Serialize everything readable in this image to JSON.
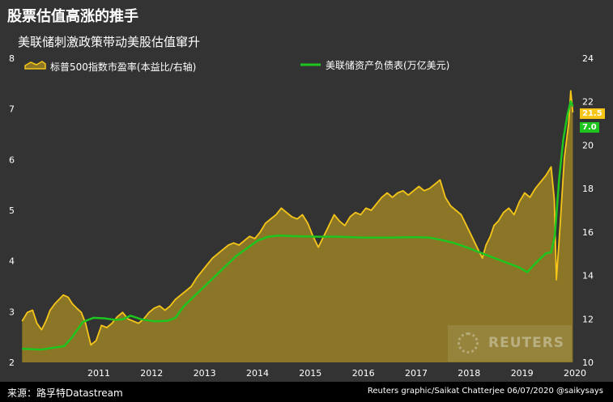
{
  "header": {
    "title": "股票估值高涨的推手",
    "subtitle": "美联储刺激政策带动美股估值窜升"
  },
  "footer": {
    "source": "来源：路孚特Datastream",
    "credit": "Reuters graphic/Saikat Chatterjee 06/07/2020 @saikysays"
  },
  "watermark": {
    "text": "REUTERS"
  },
  "colors": {
    "background": "#333333",
    "pe_line": "#f5c518",
    "pe_fill": "#8b7628",
    "fed_line": "#1ec51e"
  },
  "chart_data": {
    "type": "area",
    "x_ticks": [
      "2011",
      "2012",
      "2013",
      "2014",
      "2015",
      "2016",
      "2017",
      "2018",
      "2019",
      "2020"
    ],
    "y_left": {
      "ylim": [
        2,
        8
      ],
      "ticks": [
        "2",
        "3",
        "4",
        "5",
        "6",
        "7",
        "8"
      ]
    },
    "y_right": {
      "ylim": [
        10,
        24
      ],
      "ticks": [
        "10",
        "12",
        "14",
        "16",
        "18",
        "20",
        "22",
        "24"
      ]
    },
    "legend_position": "top",
    "grid": false,
    "series": [
      {
        "name": "标普500指数市盈率(本益比/右轴)",
        "axis": "right",
        "style": "area",
        "end_label": "21.5",
        "points": [
          [
            2010.05,
            11.9
          ],
          [
            2010.15,
            12.3
          ],
          [
            2010.25,
            12.4
          ],
          [
            2010.33,
            11.8
          ],
          [
            2010.42,
            11.5
          ],
          [
            2010.5,
            11.9
          ],
          [
            2010.58,
            12.4
          ],
          [
            2010.67,
            12.7
          ],
          [
            2010.75,
            12.9
          ],
          [
            2010.83,
            13.1
          ],
          [
            2010.92,
            13.0
          ],
          [
            2011.0,
            12.7
          ],
          [
            2011.08,
            12.5
          ],
          [
            2011.17,
            12.3
          ],
          [
            2011.25,
            11.8
          ],
          [
            2011.35,
            10.8
          ],
          [
            2011.45,
            11.0
          ],
          [
            2011.55,
            11.7
          ],
          [
            2011.65,
            11.6
          ],
          [
            2011.75,
            11.8
          ],
          [
            2011.85,
            12.1
          ],
          [
            2011.95,
            12.3
          ],
          [
            2012.05,
            12.0
          ],
          [
            2012.15,
            11.9
          ],
          [
            2012.25,
            11.8
          ],
          [
            2012.35,
            12.0
          ],
          [
            2012.45,
            12.3
          ],
          [
            2012.55,
            12.5
          ],
          [
            2012.65,
            12.6
          ],
          [
            2012.75,
            12.4
          ],
          [
            2012.85,
            12.6
          ],
          [
            2012.95,
            12.9
          ],
          [
            2013.05,
            13.1
          ],
          [
            2013.15,
            13.3
          ],
          [
            2013.25,
            13.5
          ],
          [
            2013.35,
            13.9
          ],
          [
            2013.45,
            14.2
          ],
          [
            2013.55,
            14.5
          ],
          [
            2013.65,
            14.8
          ],
          [
            2013.75,
            15.0
          ],
          [
            2013.85,
            15.2
          ],
          [
            2013.95,
            15.4
          ],
          [
            2014.05,
            15.5
          ],
          [
            2014.15,
            15.4
          ],
          [
            2014.25,
            15.6
          ],
          [
            2014.35,
            15.8
          ],
          [
            2014.45,
            15.7
          ],
          [
            2014.55,
            16.0
          ],
          [
            2014.65,
            16.4
          ],
          [
            2014.75,
            16.6
          ],
          [
            2014.85,
            16.8
          ],
          [
            2014.95,
            17.1
          ],
          [
            2015.05,
            16.9
          ],
          [
            2015.15,
            16.7
          ],
          [
            2015.25,
            16.6
          ],
          [
            2015.35,
            16.8
          ],
          [
            2015.45,
            16.4
          ],
          [
            2015.55,
            15.8
          ],
          [
            2015.65,
            15.3
          ],
          [
            2015.75,
            15.8
          ],
          [
            2015.85,
            16.3
          ],
          [
            2015.95,
            16.8
          ],
          [
            2016.05,
            16.5
          ],
          [
            2016.15,
            16.3
          ],
          [
            2016.25,
            16.7
          ],
          [
            2016.35,
            16.9
          ],
          [
            2016.45,
            16.8
          ],
          [
            2016.55,
            17.1
          ],
          [
            2016.65,
            17.0
          ],
          [
            2016.75,
            17.3
          ],
          [
            2016.85,
            17.6
          ],
          [
            2016.95,
            17.8
          ],
          [
            2017.05,
            17.6
          ],
          [
            2017.15,
            17.8
          ],
          [
            2017.25,
            17.9
          ],
          [
            2017.35,
            17.7
          ],
          [
            2017.45,
            17.9
          ],
          [
            2017.55,
            18.1
          ],
          [
            2017.65,
            17.9
          ],
          [
            2017.75,
            18.0
          ],
          [
            2017.85,
            18.2
          ],
          [
            2017.95,
            18.4
          ],
          [
            2018.05,
            17.6
          ],
          [
            2018.15,
            17.2
          ],
          [
            2018.25,
            17.0
          ],
          [
            2018.35,
            16.8
          ],
          [
            2018.45,
            16.3
          ],
          [
            2018.55,
            15.8
          ],
          [
            2018.65,
            15.3
          ],
          [
            2018.75,
            14.8
          ],
          [
            2018.82,
            15.4
          ],
          [
            2018.9,
            15.8
          ],
          [
            2018.97,
            16.3
          ],
          [
            2019.05,
            16.5
          ],
          [
            2019.15,
            16.9
          ],
          [
            2019.25,
            17.1
          ],
          [
            2019.35,
            16.8
          ],
          [
            2019.45,
            17.4
          ],
          [
            2019.55,
            17.8
          ],
          [
            2019.65,
            17.6
          ],
          [
            2019.75,
            18.0
          ],
          [
            2019.85,
            18.3
          ],
          [
            2019.95,
            18.6
          ],
          [
            2020.05,
            19.0
          ],
          [
            2020.11,
            17.5
          ],
          [
            2020.15,
            13.8
          ],
          [
            2020.22,
            16.3
          ],
          [
            2020.3,
            19.4
          ],
          [
            2020.38,
            21.0
          ],
          [
            2020.42,
            22.5
          ],
          [
            2020.46,
            21.5
          ]
        ]
      },
      {
        "name": "美联储资产负债表(万亿美元)",
        "axis": "left",
        "style": "line",
        "end_label": "7.0",
        "points": [
          [
            2010.05,
            2.27
          ],
          [
            2010.4,
            2.25
          ],
          [
            2010.85,
            2.32
          ],
          [
            2011.0,
            2.5
          ],
          [
            2011.2,
            2.8
          ],
          [
            2011.4,
            2.88
          ],
          [
            2011.6,
            2.87
          ],
          [
            2011.8,
            2.84
          ],
          [
            2011.95,
            2.85
          ],
          [
            2012.1,
            2.92
          ],
          [
            2012.3,
            2.85
          ],
          [
            2012.55,
            2.81
          ],
          [
            2012.8,
            2.82
          ],
          [
            2012.95,
            2.88
          ],
          [
            2013.1,
            3.1
          ],
          [
            2013.3,
            3.3
          ],
          [
            2013.5,
            3.5
          ],
          [
            2013.7,
            3.7
          ],
          [
            2013.9,
            3.9
          ],
          [
            2014.1,
            4.1
          ],
          [
            2014.3,
            4.25
          ],
          [
            2014.5,
            4.4
          ],
          [
            2014.7,
            4.48
          ],
          [
            2014.9,
            4.5
          ],
          [
            2015.2,
            4.49
          ],
          [
            2015.6,
            4.48
          ],
          [
            2016.0,
            4.48
          ],
          [
            2016.5,
            4.46
          ],
          [
            2017.0,
            4.46
          ],
          [
            2017.5,
            4.47
          ],
          [
            2017.75,
            4.46
          ],
          [
            2017.95,
            4.42
          ],
          [
            2018.2,
            4.36
          ],
          [
            2018.45,
            4.27
          ],
          [
            2018.7,
            4.17
          ],
          [
            2018.95,
            4.07
          ],
          [
            2019.2,
            3.97
          ],
          [
            2019.45,
            3.87
          ],
          [
            2019.6,
            3.78
          ],
          [
            2019.75,
            3.95
          ],
          [
            2019.85,
            4.05
          ],
          [
            2019.95,
            4.15
          ],
          [
            2020.05,
            4.17
          ],
          [
            2020.12,
            4.5
          ],
          [
            2020.2,
            5.6
          ],
          [
            2020.28,
            6.4
          ],
          [
            2020.36,
            6.9
          ],
          [
            2020.42,
            7.15
          ],
          [
            2020.46,
            7.05
          ]
        ]
      }
    ]
  }
}
